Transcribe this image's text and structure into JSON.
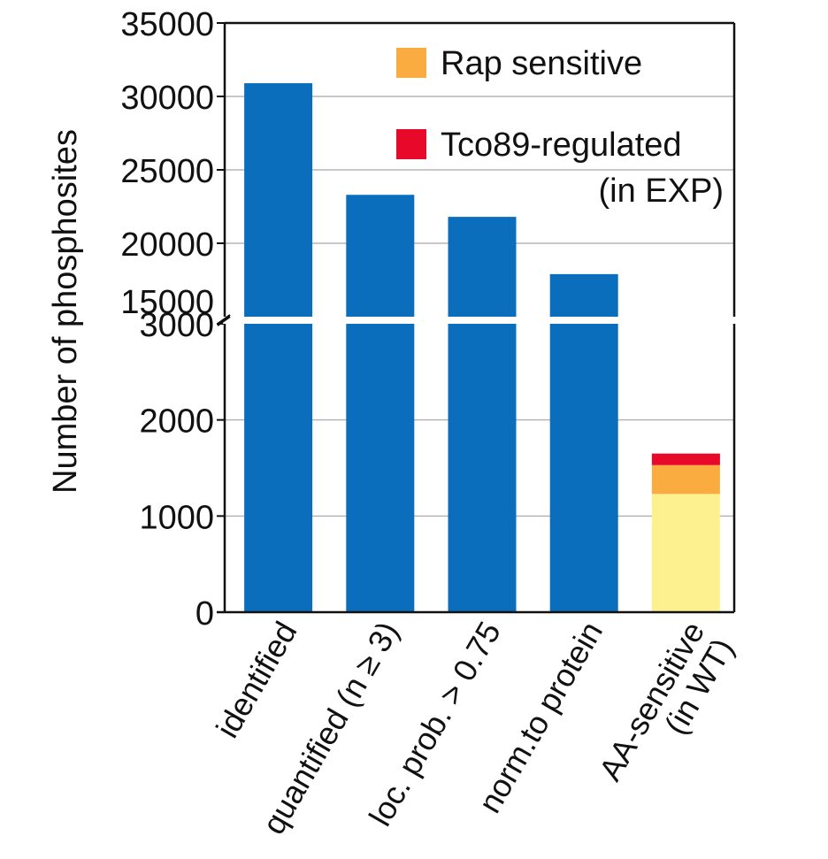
{
  "chart_data": {
    "type": "bar",
    "ylabel": "Number of phosphosites",
    "axis_break": {
      "lower_range": [
        0,
        3000
      ],
      "upper_range": [
        15000,
        35000
      ]
    },
    "lower_ticks": [
      "0",
      "1000",
      "2000",
      "3000"
    ],
    "upper_ticks": [
      "15000",
      "20000",
      "25000",
      "30000",
      "35000"
    ],
    "categories": [
      [
        "identified"
      ],
      [
        "quantified (n ≥ 3)"
      ],
      [
        "loc. prob. > 0.75"
      ],
      [
        "norm.to protein"
      ],
      [
        "AA-sensitive",
        "(in WT)"
      ]
    ],
    "values": [
      30900,
      23300,
      21800,
      17900,
      1650
    ],
    "stacked_last_bar": [
      {
        "name": "AA-sensitive (in WT)",
        "value": 1230,
        "color": "#fdf08f"
      },
      {
        "name": "Rap sensitive",
        "value": 300,
        "color": "#fbac40"
      },
      {
        "name": "Tco89-regulated (in EXP)",
        "value": 120,
        "color": "#e8082a"
      }
    ],
    "bar_color": "#0a6ebd",
    "legend": {
      "position": "top-right",
      "items": [
        {
          "lines": [
            "Rap sensitive"
          ],
          "color": "#fbac40"
        },
        {
          "lines": [
            "Tco89-regulated",
            "(in EXP)"
          ],
          "color": "#e8082a"
        }
      ]
    },
    "grid": true
  }
}
